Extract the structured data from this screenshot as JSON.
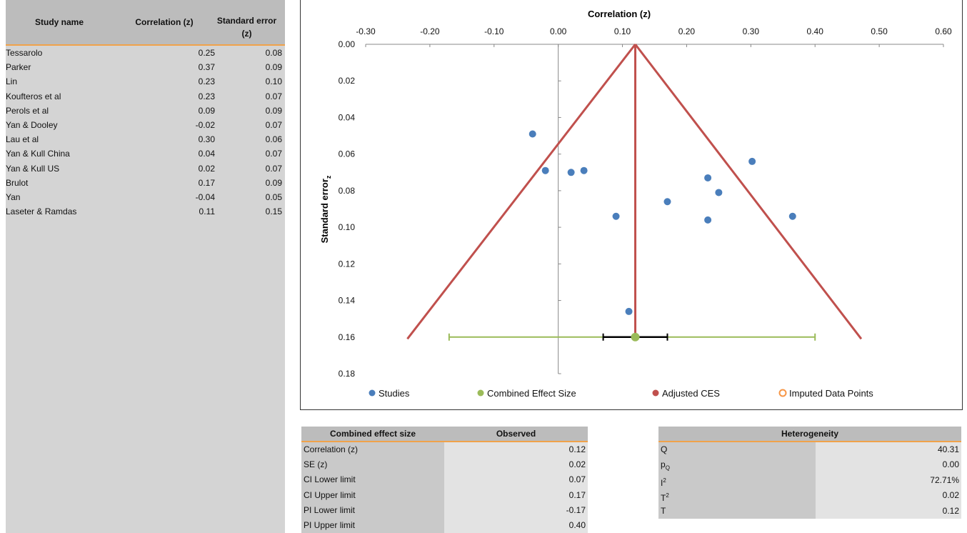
{
  "study_table": {
    "headers": {
      "name": "Study name",
      "corr": "Correlation (z)",
      "se_line1": "Standard error",
      "se_line2": "(z)"
    },
    "rows": [
      {
        "name": "Tessarolo",
        "corr": "0.25",
        "se": "0.08"
      },
      {
        "name": "Parker",
        "corr": "0.37",
        "se": "0.09"
      },
      {
        "name": "Lin",
        "corr": "0.23",
        "se": "0.10"
      },
      {
        "name": "Koufteros et al",
        "corr": "0.23",
        "se": "0.07"
      },
      {
        "name": "Perols et al",
        "corr": "0.09",
        "se": "0.09"
      },
      {
        "name": "Yan & Dooley",
        "corr": "-0.02",
        "se": "0.07"
      },
      {
        "name": "Lau et al",
        "corr": "0.30",
        "se": "0.06"
      },
      {
        "name": "Yan & Kull China",
        "corr": "0.04",
        "se": "0.07"
      },
      {
        "name": "Yan & Kull US",
        "corr": "0.02",
        "se": "0.07"
      },
      {
        "name": "Brulot",
        "corr": "0.17",
        "se": "0.09"
      },
      {
        "name": "Yan",
        "corr": "-0.04",
        "se": "0.05"
      },
      {
        "name": "Laseter & Ramdas",
        "corr": "0.11",
        "se": "0.15"
      }
    ]
  },
  "chart_data": {
    "type": "scatter",
    "title": "",
    "xlabel": "Correlation (z)",
    "ylabel_main": "Standard error",
    "ylabel_sub": "z",
    "xlim": [
      -0.3,
      0.6
    ],
    "ylim": [
      0.0,
      0.18
    ],
    "y_inverted": true,
    "x_axis_position": "top",
    "x_ticks": [
      "-0.30",
      "-0.20",
      "-0.10",
      "0.00",
      "0.10",
      "0.20",
      "0.30",
      "0.40",
      "0.50",
      "0.60"
    ],
    "y_ticks": [
      "0.00",
      "0.02",
      "0.04",
      "0.06",
      "0.08",
      "0.10",
      "0.12",
      "0.14",
      "0.16",
      "0.18"
    ],
    "grid": false,
    "legend_position": "bottom",
    "series": [
      {
        "name": "Studies",
        "color": "#4a7ebb",
        "points": [
          {
            "x": 0.25,
            "y": 0.081
          },
          {
            "x": 0.365,
            "y": 0.094
          },
          {
            "x": 0.233,
            "y": 0.096
          },
          {
            "x": 0.233,
            "y": 0.073
          },
          {
            "x": 0.09,
            "y": 0.094
          },
          {
            "x": -0.02,
            "y": 0.069
          },
          {
            "x": 0.302,
            "y": 0.064
          },
          {
            "x": 0.04,
            "y": 0.069
          },
          {
            "x": 0.02,
            "y": 0.07
          },
          {
            "x": 0.17,
            "y": 0.086
          },
          {
            "x": -0.04,
            "y": 0.049
          },
          {
            "x": 0.11,
            "y": 0.146
          }
        ]
      },
      {
        "name": "Combined Effect Size",
        "color": "#9bbb59",
        "point": {
          "x": 0.12,
          "y": 0.16
        }
      },
      {
        "name": "Adjusted CES",
        "color": "#c0504d"
      },
      {
        "name": "Imputed Data Points",
        "color": "#f79646"
      }
    ],
    "funnel": {
      "apex": {
        "x": 0.12,
        "y": 0.0
      },
      "left_base": {
        "x": -0.235,
        "y": 0.161
      },
      "right_base": {
        "x": 0.472,
        "y": 0.161
      },
      "center_bottom": {
        "x": 0.12,
        "y": 0.16
      }
    },
    "prediction_interval": {
      "lower": -0.17,
      "upper": 0.4,
      "y": 0.16
    },
    "confidence_interval": {
      "lower": 0.07,
      "upper": 0.17,
      "y": 0.16
    }
  },
  "ces_table": {
    "header_label": "Combined effect size",
    "header_value": "Observed",
    "rows": [
      {
        "label": "Correlation (z)",
        "value": "0.12"
      },
      {
        "label": "SE (z)",
        "value": "0.02"
      },
      {
        "label": "CI Lower limit",
        "value": "0.07"
      },
      {
        "label": "CI Upper limit",
        "value": "0.17"
      },
      {
        "label": "PI Lower limit",
        "value": "-0.17"
      },
      {
        "label": "PI Upper limit",
        "value": "0.40"
      }
    ]
  },
  "het_table": {
    "header": "Heterogeneity",
    "rows": [
      {
        "label": "Q",
        "sub": "",
        "sup": "",
        "value": "40.31"
      },
      {
        "label": "p",
        "sub": "Q",
        "sup": "",
        "value": "0.00"
      },
      {
        "label": "I",
        "sub": "",
        "sup": "2",
        "value": "72.71%"
      },
      {
        "label": "T",
        "sub": "",
        "sup": "2",
        "value": "0.02"
      },
      {
        "label": "T",
        "sub": "",
        "sup": "",
        "value": "0.12"
      }
    ]
  }
}
